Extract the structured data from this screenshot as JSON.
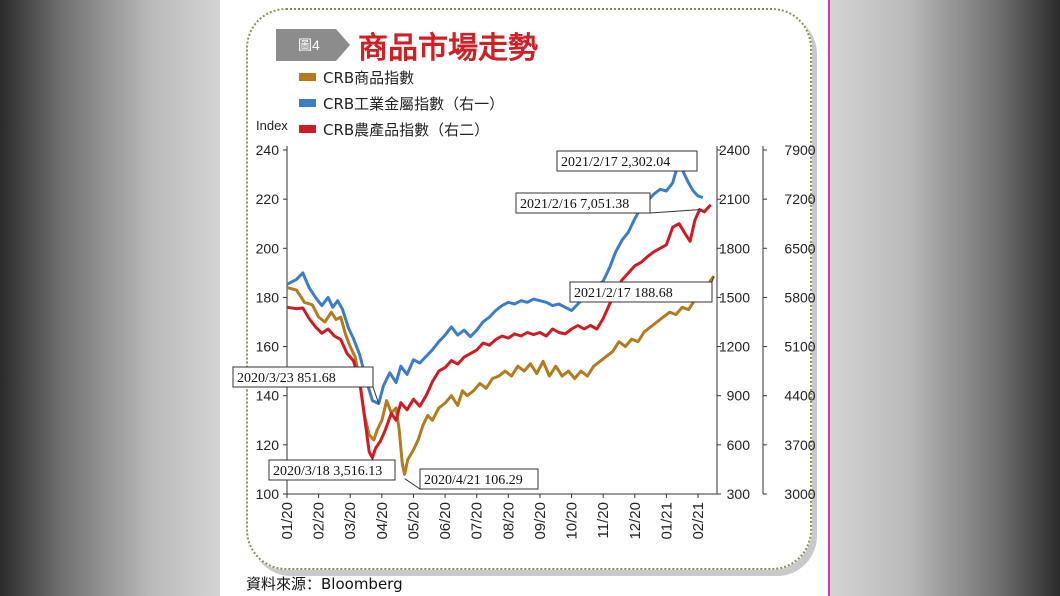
{
  "figure": {
    "tag": "圖4",
    "title": "商品市場走勢",
    "source": "資料來源：Bloomberg"
  },
  "colors": {
    "crb": "#b47a1e",
    "metals": "#3d7cc9",
    "agri": "#cf1c24",
    "title": "#d01f25",
    "tag_bg": "#8c8c8c"
  },
  "chart_data": {
    "type": "line",
    "y_left": {
      "label": "Index",
      "range": [
        100,
        240
      ],
      "ticks": [
        "100",
        "120",
        "140",
        "160",
        "180",
        "200",
        "220",
        "240"
      ]
    },
    "y_right1": {
      "range": [
        300,
        2400
      ],
      "ticks": [
        "300",
        "600",
        "900",
        "1200",
        "1500",
        "1800",
        "2100",
        "2400"
      ]
    },
    "y_right2": {
      "range": [
        3000,
        7900
      ],
      "ticks": [
        "3000",
        "3700",
        "4400",
        "5100",
        "5800",
        "6500",
        "7200",
        "7900"
      ]
    },
    "x_ticks": [
      "01/20",
      "02/20",
      "03/20",
      "04/20",
      "05/20",
      "06/20",
      "07/20",
      "08/20",
      "09/20",
      "10/20",
      "11/20",
      "12/20",
      "01/21",
      "02/21"
    ],
    "x_range": [
      0,
      13.6
    ],
    "legend": [
      {
        "name": "CRB商品指數",
        "key": "crb"
      },
      {
        "name": "CRB工業金屬指數（右一）",
        "key": "metals"
      },
      {
        "name": "CRB農產品指數（右二）",
        "key": "agri"
      }
    ],
    "series": [
      {
        "name": "CRB商品指數",
        "axis": "left",
        "key": "crb",
        "points": [
          [
            0,
            184
          ],
          [
            0.3,
            183
          ],
          [
            0.55,
            178
          ],
          [
            0.8,
            177
          ],
          [
            1.0,
            172
          ],
          [
            1.2,
            170
          ],
          [
            1.4,
            174
          ],
          [
            1.55,
            171
          ],
          [
            1.7,
            172
          ],
          [
            1.85,
            165
          ],
          [
            2.0,
            160
          ],
          [
            2.15,
            156
          ],
          [
            2.3,
            146
          ],
          [
            2.45,
            132
          ],
          [
            2.6,
            124
          ],
          [
            2.75,
            122
          ],
          [
            2.85,
            126
          ],
          [
            3.0,
            130
          ],
          [
            3.15,
            138
          ],
          [
            3.3,
            133
          ],
          [
            3.45,
            135
          ],
          [
            3.55,
            126
          ],
          [
            3.65,
            112
          ],
          [
            3.72,
            108
          ],
          [
            3.82,
            114
          ],
          [
            4.0,
            118
          ],
          [
            4.15,
            122
          ],
          [
            4.3,
            128
          ],
          [
            4.45,
            132
          ],
          [
            4.6,
            130
          ],
          [
            4.8,
            135
          ],
          [
            5.0,
            137
          ],
          [
            5.2,
            140
          ],
          [
            5.4,
            136
          ],
          [
            5.55,
            142
          ],
          [
            5.7,
            140
          ],
          [
            5.9,
            142
          ],
          [
            6.1,
            145
          ],
          [
            6.3,
            143
          ],
          [
            6.5,
            147
          ],
          [
            6.7,
            148
          ],
          [
            6.9,
            150
          ],
          [
            7.1,
            148
          ],
          [
            7.3,
            152
          ],
          [
            7.5,
            150
          ],
          [
            7.7,
            153
          ],
          [
            7.9,
            149
          ],
          [
            8.1,
            154
          ],
          [
            8.3,
            148
          ],
          [
            8.5,
            152
          ],
          [
            8.7,
            148
          ],
          [
            8.9,
            150
          ],
          [
            9.1,
            147
          ],
          [
            9.3,
            150
          ],
          [
            9.5,
            148
          ],
          [
            9.7,
            152
          ],
          [
            9.9,
            154
          ],
          [
            10.1,
            156
          ],
          [
            10.3,
            158
          ],
          [
            10.5,
            162
          ],
          [
            10.7,
            160
          ],
          [
            10.9,
            163
          ],
          [
            11.1,
            162
          ],
          [
            11.3,
            166
          ],
          [
            11.5,
            168
          ],
          [
            11.7,
            170
          ],
          [
            11.9,
            172
          ],
          [
            12.1,
            174
          ],
          [
            12.3,
            173
          ],
          [
            12.5,
            176
          ],
          [
            12.7,
            175
          ],
          [
            12.9,
            179
          ],
          [
            13.1,
            183
          ],
          [
            13.3,
            185
          ],
          [
            13.5,
            188.68
          ]
        ]
      },
      {
        "name": "CRB工業金屬指數（右一）",
        "axis": "right1",
        "key": "metals",
        "points": [
          [
            0,
            1580
          ],
          [
            0.3,
            1610
          ],
          [
            0.5,
            1650
          ],
          [
            0.7,
            1560
          ],
          [
            0.9,
            1500
          ],
          [
            1.1,
            1450
          ],
          [
            1.3,
            1500
          ],
          [
            1.45,
            1440
          ],
          [
            1.6,
            1480
          ],
          [
            1.75,
            1430
          ],
          [
            1.95,
            1310
          ],
          [
            2.1,
            1250
          ],
          [
            2.3,
            1150
          ],
          [
            2.5,
            1000
          ],
          [
            2.7,
            870
          ],
          [
            2.9,
            851.68
          ],
          [
            3.05,
            960
          ],
          [
            3.25,
            1040
          ],
          [
            3.45,
            980
          ],
          [
            3.6,
            1080
          ],
          [
            3.8,
            1030
          ],
          [
            4.0,
            1120
          ],
          [
            4.2,
            1100
          ],
          [
            4.4,
            1140
          ],
          [
            4.6,
            1180
          ],
          [
            4.8,
            1230
          ],
          [
            5.0,
            1270
          ],
          [
            5.2,
            1320
          ],
          [
            5.4,
            1270
          ],
          [
            5.6,
            1300
          ],
          [
            5.8,
            1260
          ],
          [
            6.0,
            1300
          ],
          [
            6.2,
            1350
          ],
          [
            6.4,
            1380
          ],
          [
            6.6,
            1420
          ],
          [
            6.8,
            1450
          ],
          [
            7.0,
            1470
          ],
          [
            7.2,
            1460
          ],
          [
            7.4,
            1480
          ],
          [
            7.6,
            1470
          ],
          [
            7.8,
            1490
          ],
          [
            8.0,
            1480
          ],
          [
            8.2,
            1470
          ],
          [
            8.4,
            1450
          ],
          [
            8.6,
            1460
          ],
          [
            8.8,
            1440
          ],
          [
            9.0,
            1420
          ],
          [
            9.2,
            1460
          ],
          [
            9.4,
            1500
          ],
          [
            9.6,
            1530
          ],
          [
            9.8,
            1570
          ],
          [
            10.0,
            1600
          ],
          [
            10.2,
            1680
          ],
          [
            10.4,
            1780
          ],
          [
            10.6,
            1850
          ],
          [
            10.8,
            1900
          ],
          [
            11.0,
            1980
          ],
          [
            11.2,
            2050
          ],
          [
            11.4,
            2090
          ],
          [
            11.6,
            2130
          ],
          [
            11.8,
            2160
          ],
          [
            12.0,
            2150
          ],
          [
            12.2,
            2200
          ],
          [
            12.35,
            2302.04
          ],
          [
            12.5,
            2280
          ],
          [
            12.7,
            2200
          ],
          [
            12.85,
            2150
          ],
          [
            13.0,
            2120
          ],
          [
            13.15,
            2110
          ]
        ]
      },
      {
        "name": "CRB農產品指數（右二）",
        "axis": "right2",
        "key": "agri",
        "points": [
          [
            0,
            5660
          ],
          [
            0.3,
            5640
          ],
          [
            0.5,
            5650
          ],
          [
            0.7,
            5500
          ],
          [
            0.9,
            5380
          ],
          [
            1.1,
            5290
          ],
          [
            1.3,
            5350
          ],
          [
            1.5,
            5250
          ],
          [
            1.7,
            5200
          ],
          [
            1.9,
            5000
          ],
          [
            2.1,
            4900
          ],
          [
            2.3,
            4600
          ],
          [
            2.45,
            4100
          ],
          [
            2.6,
            3600
          ],
          [
            2.7,
            3516.13
          ],
          [
            2.8,
            3650
          ],
          [
            2.95,
            3750
          ],
          [
            3.1,
            3900
          ],
          [
            3.3,
            4150
          ],
          [
            3.45,
            4050
          ],
          [
            3.6,
            4300
          ],
          [
            3.8,
            4200
          ],
          [
            4.0,
            4350
          ],
          [
            4.2,
            4250
          ],
          [
            4.4,
            4400
          ],
          [
            4.6,
            4600
          ],
          [
            4.8,
            4750
          ],
          [
            5.0,
            4800
          ],
          [
            5.2,
            4900
          ],
          [
            5.4,
            4850
          ],
          [
            5.6,
            4950
          ],
          [
            5.8,
            5000
          ],
          [
            6.0,
            5050
          ],
          [
            6.2,
            5150
          ],
          [
            6.4,
            5120
          ],
          [
            6.6,
            5200
          ],
          [
            6.8,
            5250
          ],
          [
            7.0,
            5220
          ],
          [
            7.2,
            5280
          ],
          [
            7.4,
            5250
          ],
          [
            7.6,
            5300
          ],
          [
            7.8,
            5270
          ],
          [
            8.0,
            5300
          ],
          [
            8.2,
            5250
          ],
          [
            8.4,
            5350
          ],
          [
            8.6,
            5300
          ],
          [
            8.8,
            5280
          ],
          [
            9.0,
            5350
          ],
          [
            9.2,
            5400
          ],
          [
            9.4,
            5350
          ],
          [
            9.6,
            5400
          ],
          [
            9.8,
            5350
          ],
          [
            10.0,
            5500
          ],
          [
            10.2,
            5700
          ],
          [
            10.4,
            5900
          ],
          [
            10.6,
            6050
          ],
          [
            10.8,
            6150
          ],
          [
            11.0,
            6250
          ],
          [
            11.2,
            6300
          ],
          [
            11.4,
            6380
          ],
          [
            11.6,
            6450
          ],
          [
            11.8,
            6500
          ],
          [
            12.0,
            6550
          ],
          [
            12.2,
            6800
          ],
          [
            12.4,
            6850
          ],
          [
            12.6,
            6700
          ],
          [
            12.75,
            6600
          ],
          [
            12.9,
            6900
          ],
          [
            13.05,
            7051.38
          ],
          [
            13.2,
            7020
          ],
          [
            13.4,
            7120
          ]
        ]
      }
    ],
    "annotations": [
      {
        "text": "2021/2/17  2,302.04",
        "key": "metals",
        "x": 12.35,
        "y": 2302.04,
        "axis": "right1"
      },
      {
        "text": "2021/2/16  7,051.38",
        "key": "agri",
        "x": 13.05,
        "y": 7051.38,
        "axis": "right2"
      },
      {
        "text": "2021/2/17  188.68",
        "key": "crb",
        "x": 13.5,
        "y": 188.68,
        "axis": "left"
      },
      {
        "text": "2020/3/23  851.68",
        "key": "metals",
        "x": 2.9,
        "y": 851.68,
        "axis": "right1"
      },
      {
        "text": "2020/3/18  3,516.13",
        "key": "agri",
        "x": 2.7,
        "y": 3516.13,
        "axis": "right2"
      },
      {
        "text": "2020/4/21  106.29",
        "key": "crb",
        "x": 3.72,
        "y": 106.29,
        "axis": "left"
      }
    ]
  }
}
